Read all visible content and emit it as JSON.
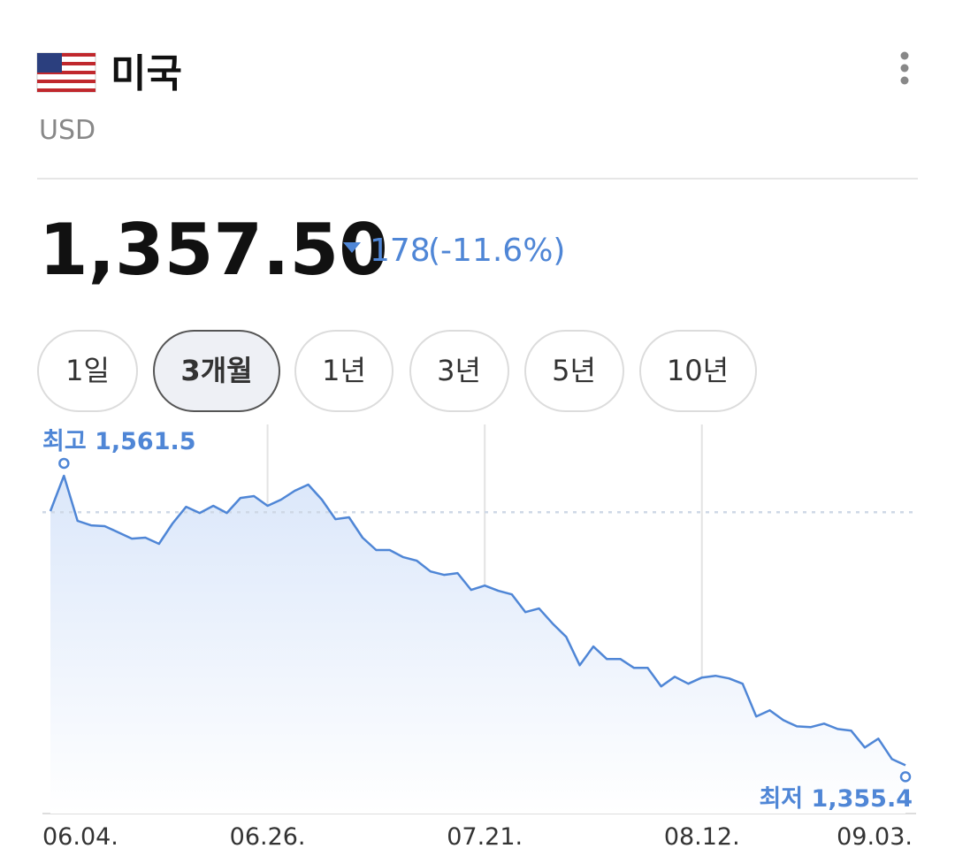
{
  "header": {
    "title": "미국",
    "subtitle": "USD"
  },
  "price": {
    "value": "1,357.50",
    "change": "178",
    "change_pct": "(-11.6%)"
  },
  "tabs": [
    "1일",
    "3개월",
    "1년",
    "3년",
    "5년",
    "10년"
  ],
  "chart_data": {
    "type": "line",
    "categories": [
      "06.04.",
      null,
      null,
      null,
      null,
      null,
      null,
      null,
      null,
      null,
      null,
      null,
      null,
      null,
      null,
      null,
      "06.26.",
      null,
      null,
      null,
      null,
      null,
      null,
      null,
      null,
      null,
      null,
      null,
      null,
      null,
      null,
      null,
      "07.21.",
      null,
      null,
      null,
      null,
      null,
      null,
      null,
      null,
      null,
      null,
      null,
      null,
      null,
      null,
      null,
      "08.12.",
      null,
      null,
      null,
      null,
      null,
      null,
      null,
      null,
      null,
      null,
      null,
      null,
      null,
      null,
      "09.03."
    ],
    "values": [
      1536.3,
      1561.5,
      1529.4,
      1526.2,
      1525.6,
      1521.2,
      1516.7,
      1517.4,
      1513.0,
      1527.5,
      1539.4,
      1535.0,
      1540.1,
      1535.0,
      1545.7,
      1547.0,
      1540.1,
      1544.5,
      1550.8,
      1555.2,
      1544.5,
      1530.6,
      1531.9,
      1517.4,
      1508.6,
      1508.6,
      1503.5,
      1501.0,
      1493.4,
      1490.9,
      1492.2,
      1480.2,
      1483.3,
      1479.6,
      1477.0,
      1464.4,
      1467.0,
      1456.3,
      1446.8,
      1426.6,
      1439.9,
      1431.0,
      1431.0,
      1424.7,
      1424.7,
      1411.5,
      1418.4,
      1413.4,
      1417.8,
      1419.1,
      1417.2,
      1413.4,
      1390.1,
      1394.5,
      1387.5,
      1383.1,
      1382.5,
      1385.0,
      1381.2,
      1380.0,
      1368.0,
      1374.3,
      1359.8,
      1355.4
    ],
    "color": "#4f86d6",
    "ylim": [
      1321,
      1598
    ],
    "reference_line": 1535.5,
    "high_label": "최고 1,561.5",
    "low_label": "최저 1,355.4",
    "grid": true
  }
}
